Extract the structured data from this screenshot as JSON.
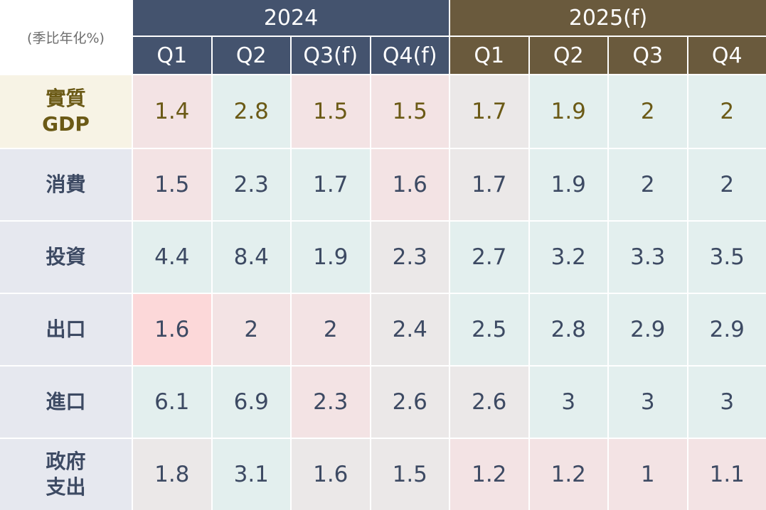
{
  "table": {
    "note": "(季比年化%)",
    "year_groups": [
      "2024",
      "2025(f)"
    ],
    "quarters": [
      "Q1",
      "Q2",
      "Q3(f)",
      "Q4(f)",
      "Q1",
      "Q2",
      "Q3",
      "Q4"
    ],
    "rows": [
      {
        "label": "實質\nGDP",
        "values": [
          1.4,
          2.8,
          1.5,
          1.5,
          1.7,
          1.9,
          2,
          2
        ]
      },
      {
        "label": "消費",
        "values": [
          1.5,
          2.3,
          1.7,
          1.6,
          1.7,
          1.9,
          2,
          2
        ]
      },
      {
        "label": "投資",
        "values": [
          4.4,
          8.4,
          1.9,
          2.3,
          2.7,
          3.2,
          3.3,
          3.5
        ]
      },
      {
        "label": "出口",
        "values": [
          1.6,
          2,
          2,
          2.4,
          2.5,
          2.8,
          2.9,
          2.9
        ]
      },
      {
        "label": "進口",
        "values": [
          6.1,
          6.9,
          2.3,
          2.6,
          2.6,
          3,
          3,
          3
        ]
      },
      {
        "label": "政府\n支出",
        "values": [
          1.8,
          3.1,
          1.6,
          1.5,
          1.2,
          1.2,
          1,
          1.1
        ]
      }
    ]
  }
}
